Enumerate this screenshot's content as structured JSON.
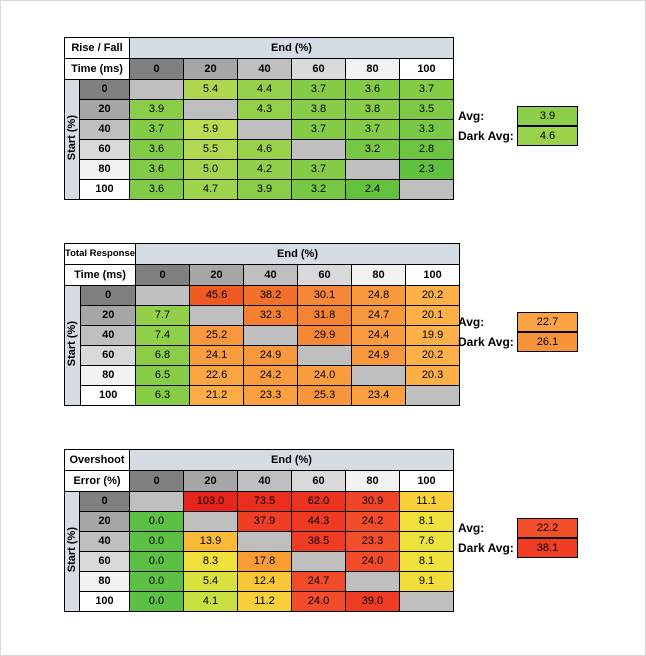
{
  "labels": {
    "avg": "Avg:",
    "dark_avg": "Dark Avg:"
  },
  "styles": {
    "header_fill": "#D6DCE4",
    "diagonal_fill": "#BFBFBF",
    "header_shades": [
      "#808080",
      "#A6A6A6",
      "#BFBFBF",
      "#D9D9D9",
      "#F2F2F2",
      "#FFFFFF"
    ],
    "cell_border": "#000000",
    "canvas_border": "#D9D9D9"
  },
  "chart_data": [
    {
      "type": "heatmap",
      "name": "rise-fall-time",
      "title": [
        "Rise / Fall",
        "Time (ms)"
      ],
      "col_header": "End (%)",
      "row_header": "Start (%)",
      "columns": [
        "0",
        "20",
        "40",
        "60",
        "80",
        "100"
      ],
      "rows": [
        "0",
        "20",
        "40",
        "60",
        "80",
        "100"
      ],
      "values": [
        [
          "",
          "5.4",
          "4.4",
          "3.7",
          "3.6",
          "3.7"
        ],
        [
          "3.9",
          "",
          "4.3",
          "3.8",
          "3.8",
          "3.5"
        ],
        [
          "3.7",
          "5.9",
          "",
          "3.7",
          "3.7",
          "3.3"
        ],
        [
          "3.6",
          "5.5",
          "4.6",
          "",
          "3.2",
          "2.8"
        ],
        [
          "3.6",
          "5.0",
          "4.2",
          "3.7",
          "",
          "2.3"
        ],
        [
          "3.6",
          "4.7",
          "3.9",
          "3.2",
          "2.4",
          ""
        ]
      ],
      "cell_colors": [
        [
          null,
          "#AFD850",
          "#96D14B",
          "#84CC46",
          "#82CB46",
          "#84CC46"
        ],
        [
          "#89CD48",
          null,
          "#94D04A",
          "#87CD47",
          "#87CD47",
          "#7FCA45"
        ],
        [
          "#84CC46",
          "#BBDB53",
          null,
          "#84CC46",
          "#84CC46",
          "#7AC944"
        ],
        [
          "#82CB46",
          "#B1D851",
          "#9BD24C",
          null,
          "#77C843",
          "#6CC541"
        ],
        [
          "#82CB46",
          "#A5D54E",
          "#91D04A",
          "#84CC46",
          null,
          "#5FC13F"
        ],
        [
          "#82CB46",
          "#9DD34D",
          "#89CD48",
          "#77C843",
          "#61C23F",
          null
        ]
      ],
      "avg": "3.9",
      "dark_avg": "4.6",
      "avg_color": "#8CCE49",
      "dark_avg_color": "#9BD24C"
    },
    {
      "type": "heatmap",
      "name": "total-response-time",
      "title": [
        "Total Response",
        "Time (ms)"
      ],
      "col_header": "End (%)",
      "row_header": "Start (%)",
      "columns": [
        "0",
        "20",
        "40",
        "60",
        "80",
        "100"
      ],
      "rows": [
        "0",
        "20",
        "40",
        "60",
        "80",
        "100"
      ],
      "values": [
        [
          "",
          "45.6",
          "38.2",
          "30.1",
          "24.8",
          "20.2"
        ],
        [
          "7.7",
          "",
          "32.3",
          "31.8",
          "24.7",
          "20.1"
        ],
        [
          "7.4",
          "25.2",
          "",
          "29.9",
          "24.4",
          "19.9"
        ],
        [
          "6.8",
          "24.1",
          "24.9",
          "",
          "24.9",
          "20.2"
        ],
        [
          "6.5",
          "22.6",
          "24.2",
          "24.0",
          "",
          "20.3"
        ],
        [
          "6.3",
          "21.2",
          "23.3",
          "25.3",
          "23.4",
          ""
        ]
      ],
      "cell_colors": [
        [
          null,
          "#EE5A22",
          "#F1702B",
          "#F58736",
          "#F9993D",
          "#FDB047"
        ],
        [
          "#92D04A",
          null,
          "#F48032",
          "#F48233",
          "#F9993D",
          "#FDB047"
        ],
        [
          "#90CF4A",
          "#F8973C",
          null,
          "#F58836",
          "#F99B3E",
          "#FDB148"
        ],
        [
          "#8BCD48",
          "#FA9D3F",
          "#F8983D",
          null,
          "#F8983D",
          "#FDB047"
        ],
        [
          "#88CD47",
          "#FBA442",
          "#F99C3F",
          "#FA9D3F",
          null,
          "#FDAF47"
        ],
        [
          "#86CC47",
          "#FCAB45",
          "#FAA041",
          "#F8963C",
          "#FAA040",
          null
        ]
      ],
      "avg": "22.7",
      "dark_avg": "26.1",
      "avg_color": "#FBA342",
      "dark_avg_color": "#F7943A"
    },
    {
      "type": "heatmap",
      "name": "overshoot-error",
      "title": [
        "Overshoot",
        "Error (%)"
      ],
      "col_header": "End (%)",
      "row_header": "Start (%)",
      "columns": [
        "0",
        "20",
        "40",
        "60",
        "80",
        "100"
      ],
      "rows": [
        "0",
        "20",
        "40",
        "60",
        "80",
        "100"
      ],
      "values": [
        [
          "",
          "103.0",
          "73.5",
          "62.0",
          "30.9",
          "11.1"
        ],
        [
          "0.0",
          "",
          "37.9",
          "44.3",
          "24.2",
          "8.1"
        ],
        [
          "0.0",
          "13.9",
          "",
          "38.5",
          "23.3",
          "7.6"
        ],
        [
          "0.0",
          "8.3",
          "17.8",
          "",
          "24.0",
          "8.1"
        ],
        [
          "0.0",
          "5.4",
          "12.4",
          "24.7",
          "",
          "9.1"
        ],
        [
          "0.0",
          "4.1",
          "11.2",
          "24.0",
          "39.0",
          ""
        ]
      ],
      "cell_colors": [
        [
          null,
          "#E8251C",
          "#EA2E1E",
          "#EC331F",
          "#F14527",
          "#F7D039"
        ],
        [
          "#5CC143",
          null,
          "#EF3E24",
          "#EE3A22",
          "#F24C2A",
          "#EEE13C"
        ],
        [
          "#5CC143",
          "#F8BA36",
          null,
          "#EF3D23",
          "#F34E2B",
          "#ECE23D"
        ],
        [
          "#5CC143",
          "#EFE03C",
          "#F89C33",
          null,
          "#F24C2A",
          "#EEE13C"
        ],
        [
          "#5CC143",
          "#D9E13E",
          "#F7C738",
          "#F24B29",
          null,
          "#F2DC3B"
        ],
        [
          "#5CC143",
          "#C9DE40",
          "#F7D039",
          "#F24C2A",
          "#EF3D23",
          null
        ]
      ],
      "avg": "22.2",
      "dark_avg": "38.1",
      "avg_color": "#F34F2B",
      "dark_avg_color": "#EF3D23"
    }
  ]
}
